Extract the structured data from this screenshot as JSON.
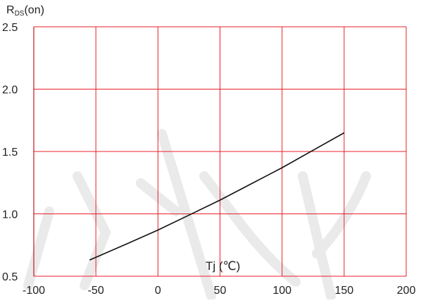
{
  "chart_data": {
    "type": "line",
    "title": "",
    "ylabel_main": "R",
    "ylabel_sub": "DS",
    "ylabel_tail": "(on)",
    "xlabel": "Tj (℃)",
    "xlim": [
      -100,
      200
    ],
    "ylim": [
      0.5,
      2.5
    ],
    "x_ticks": [
      "-100",
      "-50",
      "0",
      "50",
      "100",
      "150",
      "200"
    ],
    "y_ticks": [
      "0.5",
      "1.0",
      "1.5",
      "2.0",
      "2.5"
    ],
    "grid": true,
    "colors": {
      "grid": "#e8202a",
      "line": "#111111",
      "watermark": "#d9d9d9"
    },
    "series": [
      {
        "x": [
          -55,
          -25,
          0,
          25,
          50,
          75,
          100,
          125,
          150
        ],
        "y": [
          0.63,
          0.76,
          0.87,
          0.99,
          1.11,
          1.24,
          1.37,
          1.51,
          1.65
        ]
      }
    ]
  }
}
